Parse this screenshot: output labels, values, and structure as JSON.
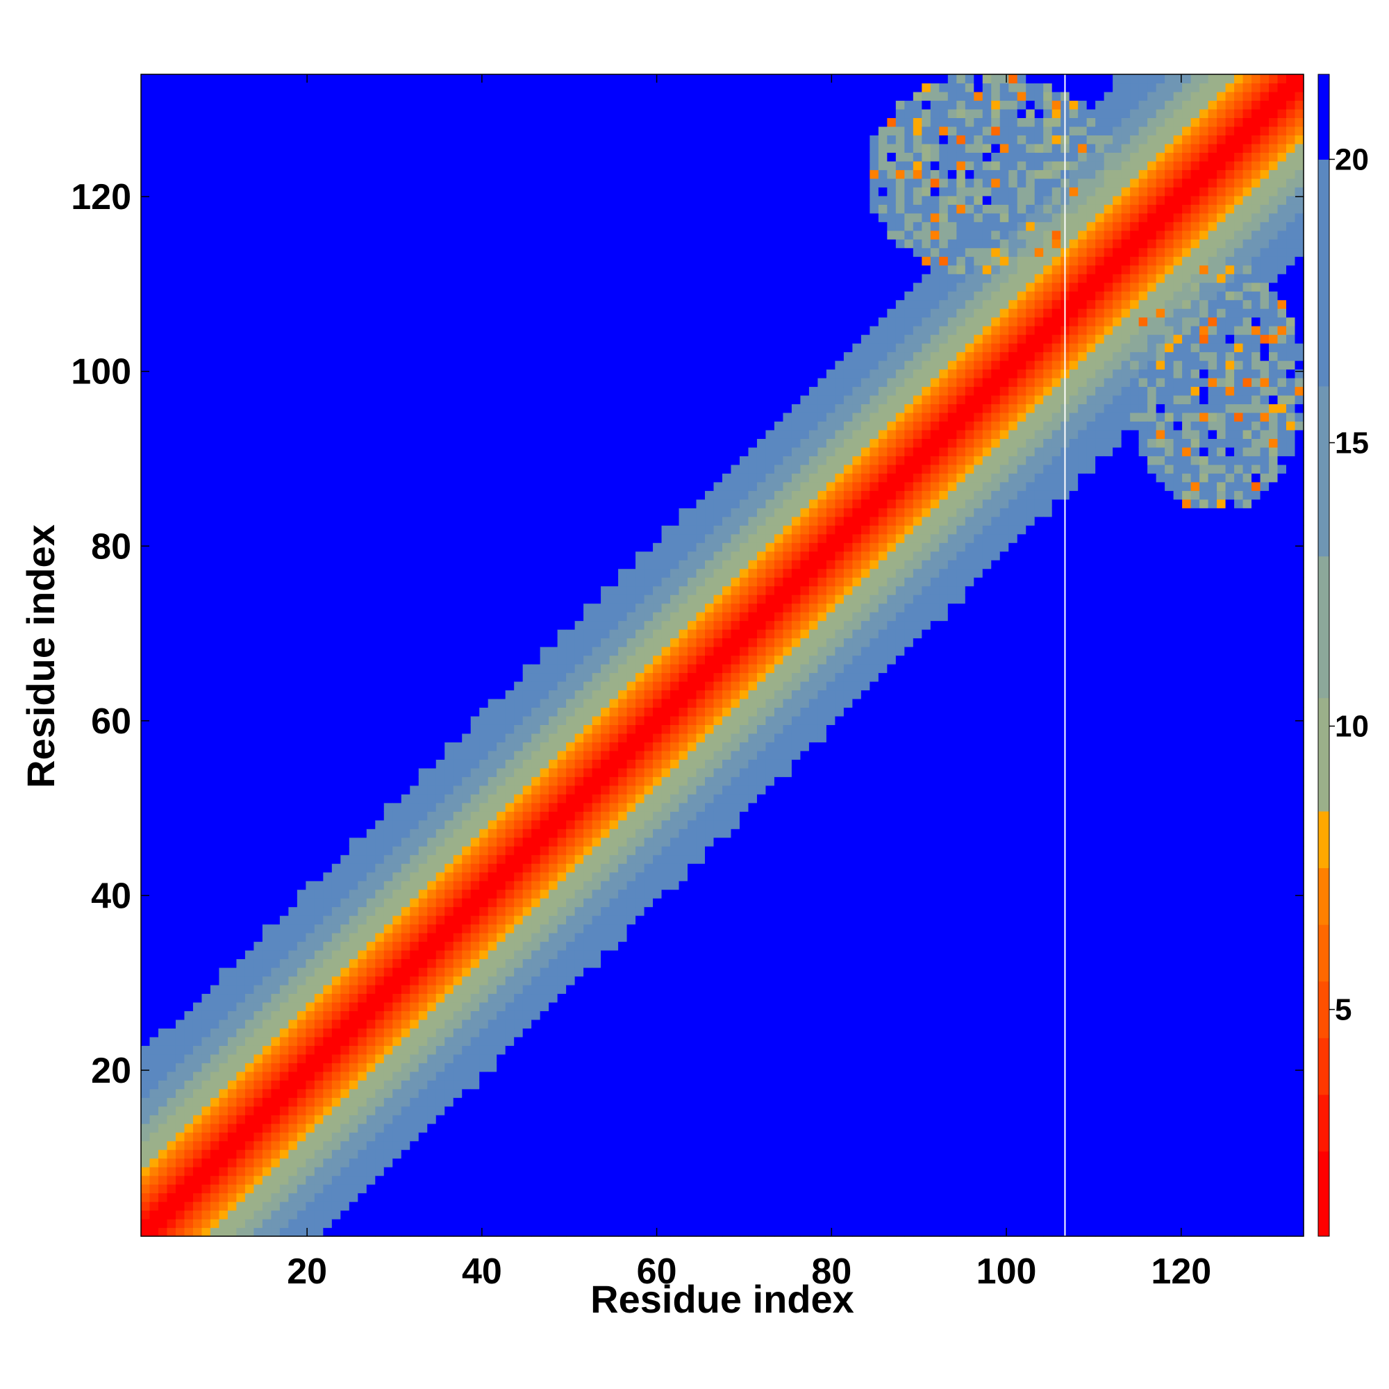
{
  "chart_data": {
    "type": "heatmap",
    "title": "",
    "xlabel": "Residue index",
    "ylabel": "Residue index",
    "n_residues": 134,
    "xlim": [
      1,
      134
    ],
    "ylim": [
      1,
      134
    ],
    "xticks": [
      20,
      40,
      60,
      80,
      100,
      120
    ],
    "yticks": [
      20,
      40,
      60,
      80,
      100,
      120
    ],
    "colorbar": {
      "range": [
        1,
        21.5
      ],
      "ticks": [
        5,
        10,
        15,
        20
      ],
      "levels": [
        {
          "max": 2.5,
          "color": "#ff0000"
        },
        {
          "max": 3.5,
          "color": "#ff1800"
        },
        {
          "max": 4.5,
          "color": "#ff3800"
        },
        {
          "max": 5.5,
          "color": "#ff5000"
        },
        {
          "max": 6.5,
          "color": "#ff6800"
        },
        {
          "max": 7.5,
          "color": "#ff8000"
        },
        {
          "max": 8.5,
          "color": "#ffa800"
        },
        {
          "max": 10.5,
          "color": "#9bb08a"
        },
        {
          "max": 13.0,
          "color": "#8ca89a"
        },
        {
          "max": 16.0,
          "color": "#6f96b4"
        },
        {
          "max": 20.0,
          "color": "#5b88c0"
        },
        {
          "max": 99,
          "color": "#0000ff"
        }
      ]
    },
    "diagonal_band": {
      "value_at_offset_0": 1,
      "slope_per_residue": 0.95,
      "max_value": 20.5
    },
    "contact_regions": [
      {
        "x_range": [
          85,
          112
        ],
        "y_range": [
          112,
          134
        ],
        "base_value": 17
      },
      {
        "x_range": [
          115,
          134
        ],
        "y_range": [
          85,
          112
        ],
        "base_value": 17
      }
    ],
    "gap_column": 107,
    "background_value": 21
  }
}
